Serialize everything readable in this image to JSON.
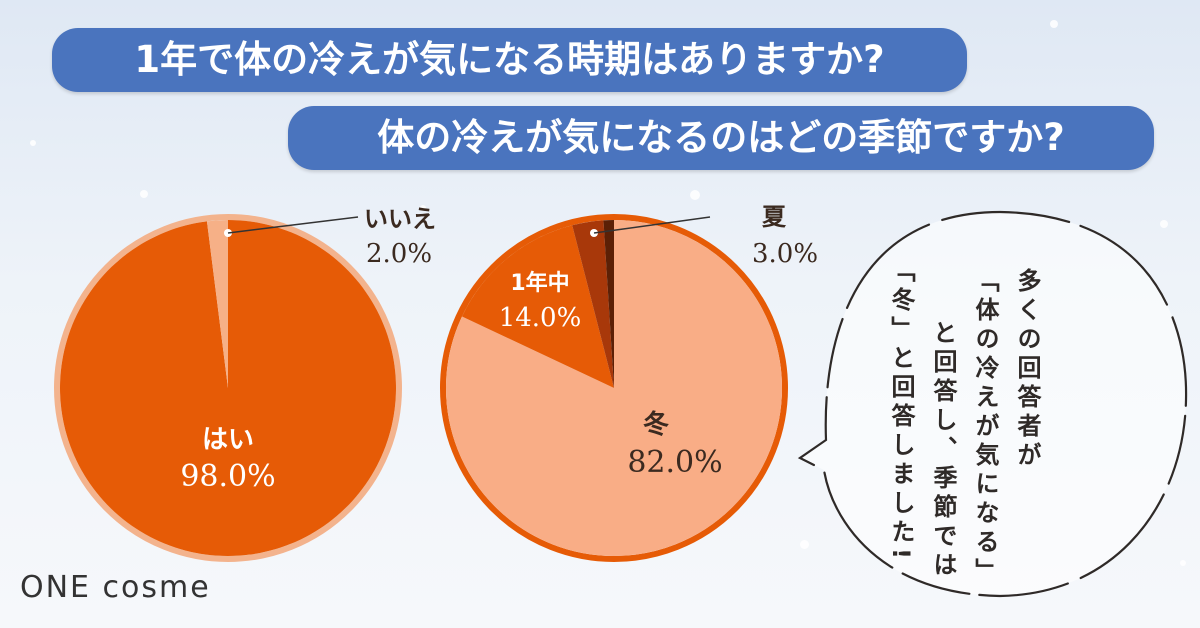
{
  "question1": "1年で体の冷えが気になる時期はありますか?",
  "question2": "体の冷えが気になるのはどの季節ですか?",
  "chart_data": [
    {
      "type": "pie",
      "slices": [
        {
          "label": "はい",
          "value": 98.0,
          "display": "98.0%",
          "color": "#e65b06"
        },
        {
          "label": "いいえ",
          "value": 2.0,
          "display": "2.0%",
          "color": "#f6b087"
        }
      ]
    },
    {
      "type": "pie",
      "slices": [
        {
          "label": "冬",
          "value": 82.0,
          "display": "82.0%",
          "color": "#f9ad86"
        },
        {
          "label": "1年中",
          "value": 14.0,
          "display": "14.0%",
          "color": "#e65b06"
        },
        {
          "label": "夏",
          "value": 3.0,
          "display": "3.0%",
          "color": "#a8380a"
        },
        {
          "label": "",
          "value": 1.0,
          "display": "",
          "color": "#5c2006"
        }
      ]
    }
  ],
  "bubble": {
    "line1": "多くの回答者が",
    "line2": "「体の冷えが気になる」",
    "line3": "と回答し、季節では",
    "line4": "「冬」と回答しました!"
  },
  "logo": "ONE cosme"
}
